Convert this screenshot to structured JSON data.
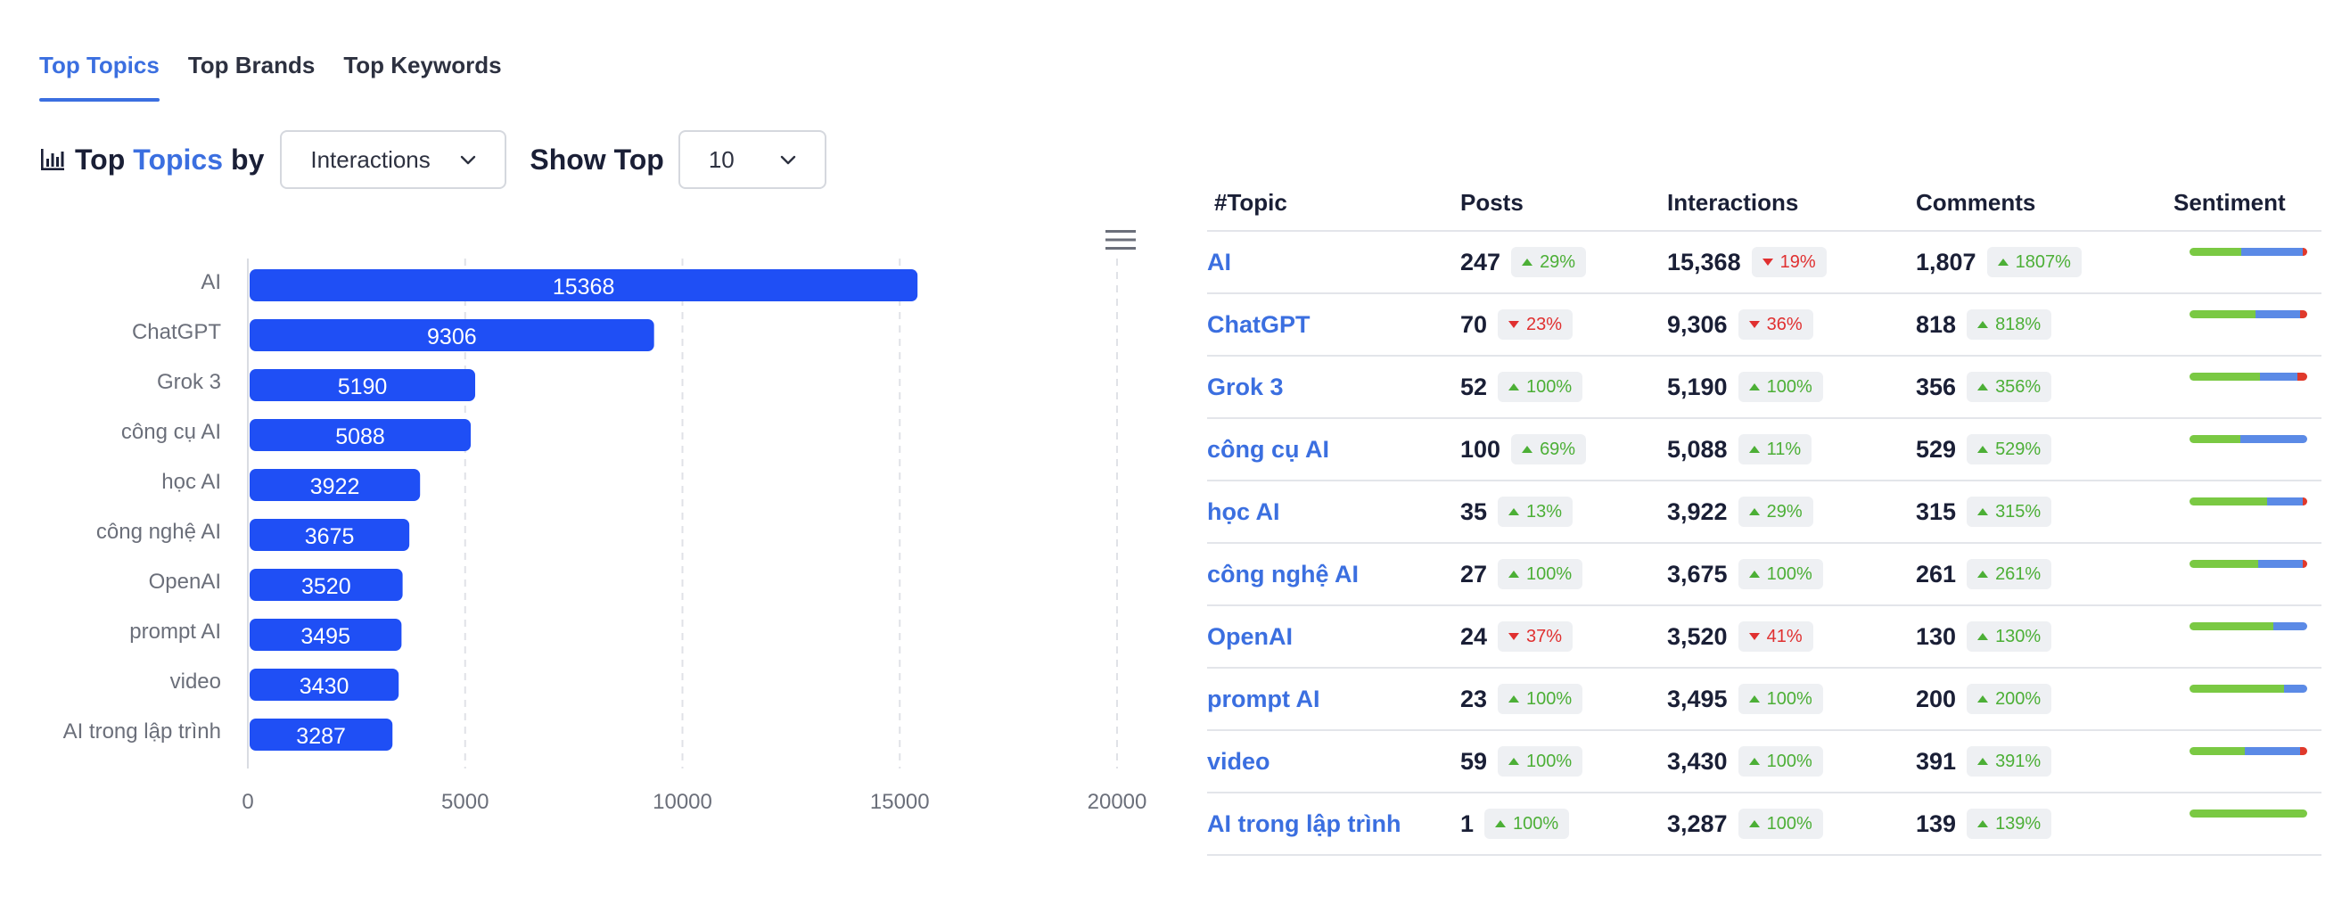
{
  "tabs": [
    {
      "label": "Top Topics",
      "active": true
    },
    {
      "label": "Top Brands",
      "active": false
    },
    {
      "label": "Top Keywords",
      "active": false
    }
  ],
  "header": {
    "title_prefix": "Top",
    "title_accent": "Topics",
    "title_suffix": "by",
    "metric_select": "Interactions",
    "show_top_label": "Show Top",
    "top_select": "10"
  },
  "colors": {
    "accent": "#3b6fe0",
    "bar": "#1f4ff5",
    "up": "#4caf36",
    "down": "#e03030",
    "sentiment_positive": "#7ac943",
    "sentiment_neutral": "#5b8ae6",
    "sentiment_negative": "#e0392b"
  },
  "chart_data": {
    "type": "bar",
    "orientation": "horizontal",
    "categories": [
      "AI",
      "ChatGPT",
      "Grok 3",
      "công cụ AI",
      "học AI",
      "công nghệ AI",
      "OpenAI",
      "prompt AI",
      "video",
      "AI trong lập trình"
    ],
    "values": [
      15368,
      9306,
      5190,
      5088,
      3922,
      3675,
      3520,
      3495,
      3430,
      3287
    ],
    "xlim": [
      0,
      20000
    ],
    "xticks": [
      0,
      5000,
      10000,
      15000,
      20000
    ],
    "grid": "vertical dashed",
    "title": "",
    "xlabel": "",
    "ylabel": ""
  },
  "table": {
    "headers": [
      "#Topic",
      "Posts",
      "Interactions",
      "Comments",
      "Sentiment"
    ],
    "rows": [
      {
        "topic": "AI",
        "posts": "247",
        "posts_change": "29%",
        "posts_dir": "up",
        "interactions": "15,368",
        "inter_change": "19%",
        "inter_dir": "down",
        "comments": "1,807",
        "comm_change": "1807%",
        "comm_dir": "up",
        "sentiment": [
          0.44,
          0.52,
          0.04
        ]
      },
      {
        "topic": "ChatGPT",
        "posts": "70",
        "posts_change": "23%",
        "posts_dir": "down",
        "interactions": "9,306",
        "inter_change": "36%",
        "inter_dir": "down",
        "comments": "818",
        "comm_change": "818%",
        "comm_dir": "up",
        "sentiment": [
          0.56,
          0.38,
          0.06
        ]
      },
      {
        "topic": "Grok 3",
        "posts": "52",
        "posts_change": "100%",
        "posts_dir": "up",
        "interactions": "5,190",
        "inter_change": "100%",
        "inter_dir": "up",
        "comments": "356",
        "comm_change": "356%",
        "comm_dir": "up",
        "sentiment": [
          0.6,
          0.32,
          0.08
        ]
      },
      {
        "topic": "công cụ AI",
        "posts": "100",
        "posts_change": "69%",
        "posts_dir": "up",
        "interactions": "5,088",
        "inter_change": "11%",
        "inter_dir": "up",
        "comments": "529",
        "comm_change": "529%",
        "comm_dir": "up",
        "sentiment": [
          0.43,
          0.57,
          0.0
        ]
      },
      {
        "topic": "học AI",
        "posts": "35",
        "posts_change": "13%",
        "posts_dir": "up",
        "interactions": "3,922",
        "inter_change": "29%",
        "inter_dir": "up",
        "comments": "315",
        "comm_change": "315%",
        "comm_dir": "up",
        "sentiment": [
          0.66,
          0.3,
          0.04
        ]
      },
      {
        "topic": "công nghệ AI",
        "posts": "27",
        "posts_change": "100%",
        "posts_dir": "up",
        "interactions": "3,675",
        "inter_change": "100%",
        "inter_dir": "up",
        "comments": "261",
        "comm_change": "261%",
        "comm_dir": "up",
        "sentiment": [
          0.58,
          0.38,
          0.04
        ]
      },
      {
        "topic": "OpenAI",
        "posts": "24",
        "posts_change": "37%",
        "posts_dir": "down",
        "interactions": "3,520",
        "inter_change": "41%",
        "inter_dir": "down",
        "comments": "130",
        "comm_change": "130%",
        "comm_dir": "up",
        "sentiment": [
          0.71,
          0.29,
          0.0
        ]
      },
      {
        "topic": "prompt AI",
        "posts": "23",
        "posts_change": "100%",
        "posts_dir": "up",
        "interactions": "3,495",
        "inter_change": "100%",
        "inter_dir": "up",
        "comments": "200",
        "comm_change": "200%",
        "comm_dir": "up",
        "sentiment": [
          0.8,
          0.2,
          0.0
        ]
      },
      {
        "topic": "video",
        "posts": "59",
        "posts_change": "100%",
        "posts_dir": "up",
        "interactions": "3,430",
        "inter_change": "100%",
        "inter_dir": "up",
        "comments": "391",
        "comm_change": "391%",
        "comm_dir": "up",
        "sentiment": [
          0.47,
          0.47,
          0.06
        ]
      },
      {
        "topic": "AI trong lập trình",
        "posts": "1",
        "posts_change": "100%",
        "posts_dir": "up",
        "interactions": "3,287",
        "inter_change": "100%",
        "inter_dir": "up",
        "comments": "139",
        "comm_change": "139%",
        "comm_dir": "up",
        "sentiment": [
          1.0,
          0.0,
          0.0
        ]
      }
    ]
  }
}
